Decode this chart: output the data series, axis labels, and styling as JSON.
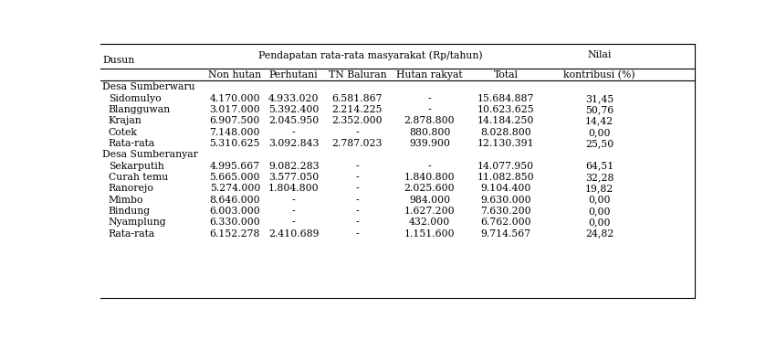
{
  "section1_label": "Desa Sumberwaru",
  "section2_label": "Desa Sumberanyar",
  "col_headers": [
    "Non hutan",
    "Perhutani",
    "TN Baluran",
    "Hutan rakyat",
    "Total",
    "kontribusi (%)"
  ],
  "rows": [
    [
      "Sidomulyo",
      "4.170.000",
      "4.933.020",
      "6.581.867",
      "-",
      "15.684.887",
      "31,45"
    ],
    [
      "Blangguwan",
      "3.017.000",
      "5.392.400",
      "2.214.225",
      "-",
      "10.623.625",
      "50,76"
    ],
    [
      "Krajan",
      "6.907.500",
      "2.045.950",
      "2.352.000",
      "2.878.800",
      "14.184.250",
      "14,42"
    ],
    [
      "Cotek",
      "7.148.000",
      "-",
      "-",
      "880.800",
      "8.028.800",
      "0,00"
    ],
    [
      "Rata-rata",
      "5.310.625",
      "3.092.843",
      "2.787.023",
      "939.900",
      "12.130.391",
      "25,50"
    ],
    [
      "Sekarputih",
      "4.995.667",
      "9.082.283",
      "-",
      "-",
      "14.077.950",
      "64,51"
    ],
    [
      "Curah temu",
      "5.665.000",
      "3.577.050",
      "-",
      "1.840.800",
      "11.082.850",
      "32,28"
    ],
    [
      "Ranorejo",
      "5.274.000",
      "1.804.800",
      "-",
      "2.025.600",
      "9.104.400",
      "19,82"
    ],
    [
      "Mimbo",
      "8.646.000",
      "-",
      "-",
      "984.000",
      "9.630.000",
      "0,00"
    ],
    [
      "Bindung",
      "6.003.000",
      "-",
      "-",
      "1.627.200",
      "7.630.200",
      "0,00"
    ],
    [
      "Nyamplung",
      "6.330.000",
      "-",
      "-",
      "432.000",
      "6.762.000",
      "0,00"
    ],
    [
      "Rata-rata",
      "6.152.278",
      "2.410.689",
      "-",
      "1.151.600",
      "9.714.567",
      "24,82"
    ]
  ],
  "text_color": "#000000",
  "bg_color": "#ffffff",
  "font_size": 7.8,
  "font_family": "DejaVu Serif"
}
